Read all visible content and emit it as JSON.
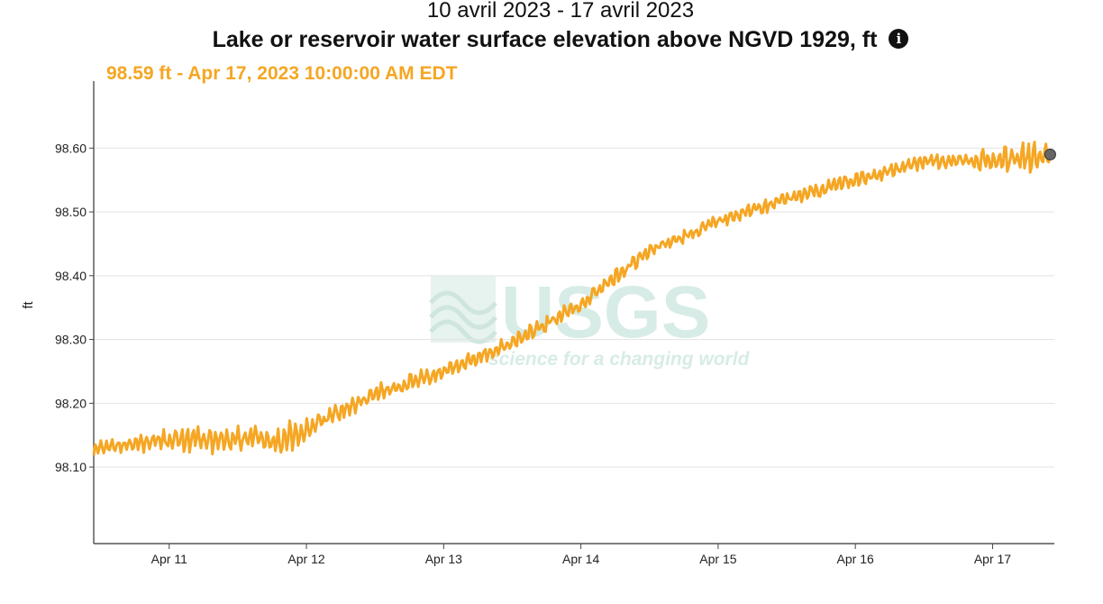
{
  "header": {
    "date_range": "10 avril 2023 - 17 avril 2023",
    "title": "Lake or reservoir water surface elevation above NGVD 1929, ft",
    "info_icon": "info-icon",
    "info_symbol": "i"
  },
  "tooltip": {
    "text": "98.59 ft - Apr 17, 2023 10:00:00 AM EDT",
    "color": "#f5a623"
  },
  "watermark": {
    "logo": "USGS",
    "tagline": "science for a changing world"
  },
  "chart_data": {
    "type": "line",
    "title": "Lake or reservoir water surface elevation above NGVD 1929, ft",
    "subtitle": "10 avril 2023 - 17 avril 2023",
    "xlabel": "",
    "ylabel": "ft",
    "x_unit": "days since Apr 11, 2023 00:00",
    "xlim": [
      -0.55,
      6.45
    ],
    "ylim": [
      97.98,
      98.705
    ],
    "grid": true,
    "line_color": "#f5a623",
    "x_ticks": [
      {
        "x": 0,
        "label": "Apr 11"
      },
      {
        "x": 1,
        "label": "Apr 12"
      },
      {
        "x": 2,
        "label": "Apr 13"
      },
      {
        "x": 3,
        "label": "Apr 14"
      },
      {
        "x": 4,
        "label": "Apr 15"
      },
      {
        "x": 5,
        "label": "Apr 16"
      },
      {
        "x": 6,
        "label": "Apr 17"
      }
    ],
    "y_ticks": [
      {
        "y": 98.1,
        "label": "98.10"
      },
      {
        "y": 98.2,
        "label": "98.20"
      },
      {
        "y": 98.3,
        "label": "98.30"
      },
      {
        "y": 98.4,
        "label": "98.40"
      },
      {
        "y": 98.5,
        "label": "98.50"
      },
      {
        "y": 98.6,
        "label": "98.60"
      }
    ],
    "series": [
      {
        "name": "Lake or reservoir water surface elevation",
        "trend": {
          "x": [
            -0.55,
            0.0,
            0.5,
            0.8,
            0.9,
            1.0,
            1.5,
            2.0,
            2.5,
            3.0,
            3.5,
            4.0,
            4.5,
            5.0,
            5.5,
            6.0,
            6.42
          ],
          "y": [
            98.13,
            98.14,
            98.145,
            98.14,
            98.15,
            98.16,
            98.215,
            98.25,
            98.295,
            98.355,
            98.44,
            98.485,
            98.52,
            98.55,
            98.58,
            98.58,
            98.59
          ]
        },
        "amplitude": {
          "x": [
            -0.55,
            0.0,
            0.8,
            1.2,
            2.0,
            4.0,
            5.4,
            5.8,
            6.0,
            6.3,
            6.42
          ],
          "a": [
            0.013,
            0.022,
            0.027,
            0.018,
            0.014,
            0.012,
            0.013,
            0.016,
            0.02,
            0.026,
            0.02
          ]
        },
        "samples_per_day": 96,
        "oscillation_period_days": 0.0417
      }
    ],
    "highlight_point": {
      "x": 6.42,
      "y": 98.59,
      "label": "98.59 ft - Apr 17, 2023 10:00:00 AM EDT"
    }
  }
}
